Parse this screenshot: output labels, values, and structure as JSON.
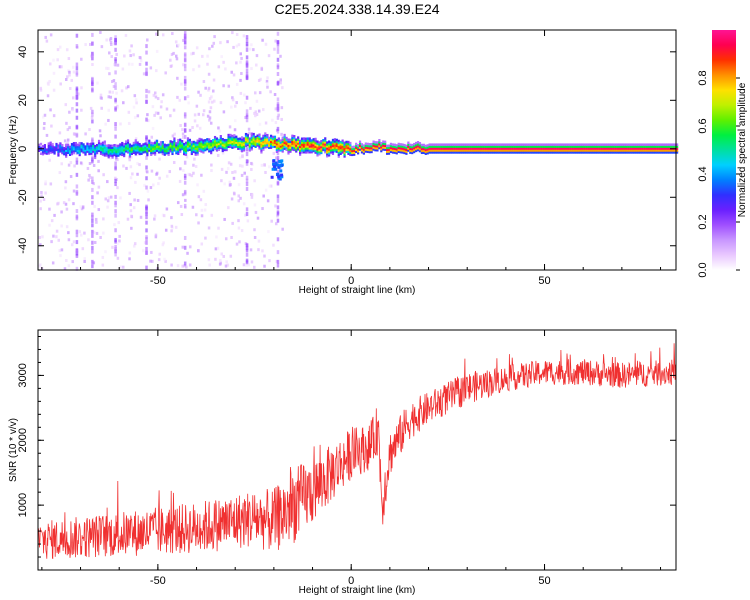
{
  "figure": {
    "title": "C2E5.2024.338.14.39.E24"
  },
  "chart_data": [
    {
      "type": "heatmap",
      "xlabel": "Height of straight line (km)",
      "ylabel": "Frequency (Hz)",
      "xlim": [
        -81,
        84
      ],
      "ylim": [
        -50,
        49
      ],
      "xticks": [
        -50,
        0,
        50
      ],
      "yticks": [
        -40,
        -20,
        0,
        20,
        40
      ],
      "colorbar": {
        "label": "Normalized spectral amplitude",
        "range": [
          0,
          1
        ],
        "ticks": [
          0.0,
          0.2,
          0.4,
          0.6,
          0.8
        ],
        "tick_labels": [
          "0.0",
          "0.2",
          "0.4",
          "0.6",
          "0.8"
        ],
        "colormap": [
          "#ffffff",
          "#e9c8ff",
          "#c896ff",
          "#a050ff",
          "#6a20ff",
          "#3030ff",
          "#0080ff",
          "#00d0ff",
          "#00e0a0",
          "#00f040",
          "#60f000",
          "#c0f000",
          "#ffe000",
          "#ff9000",
          "#ff3000",
          "#ff0050",
          "#ff1493"
        ]
      },
      "ridge": {
        "description_points_x": [
          -81,
          -70,
          -60,
          -50,
          -40,
          -30,
          -25,
          -20,
          -10,
          0,
          7,
          10,
          20,
          30,
          50,
          84
        ],
        "freq_hz": [
          0,
          0,
          0,
          0.5,
          1,
          2.5,
          3,
          2,
          1.5,
          0,
          1,
          0,
          0,
          0,
          0,
          0
        ],
        "amplitude": [
          0.3,
          0.45,
          0.55,
          0.6,
          0.65,
          0.7,
          0.75,
          0.85,
          0.9,
          0.92,
          0.95,
          0.95,
          0.97,
          0.98,
          0.98,
          0.98
        ]
      },
      "spike_columns_x": [
        -71,
        -67,
        -61,
        -53,
        -43,
        -27,
        -19
      ]
    },
    {
      "type": "line",
      "xlabel": "Height of straight line (km)",
      "ylabel": "SNR (10 * v/v)",
      "xlim": [
        -81,
        84
      ],
      "ylim": [
        0,
        3700
      ],
      "xticks": [
        -50,
        0,
        50
      ],
      "yticks": [
        1000,
        2000,
        3000
      ],
      "series": [
        {
          "color": "#f03030",
          "trend_x": [
            -81,
            -60,
            -40,
            -25,
            -20,
            -15,
            -10,
            -5,
            0,
            5,
            7,
            8,
            10,
            15,
            20,
            25,
            30,
            40,
            50,
            60,
            70,
            84
          ],
          "trend_y": [
            450,
            550,
            650,
            800,
            750,
            1000,
            1200,
            1500,
            1800,
            1900,
            2200,
            1000,
            1800,
            2300,
            2500,
            2650,
            2800,
            2950,
            3050,
            3050,
            3000,
            3050
          ],
          "noise_amplitude": [
            300,
            350,
            400,
            450,
            500,
            600,
            500,
            450,
            400,
            350,
            400,
            400,
            350,
            300,
            250,
            250,
            250,
            200,
            200,
            200,
            200,
            200
          ]
        }
      ]
    }
  ]
}
